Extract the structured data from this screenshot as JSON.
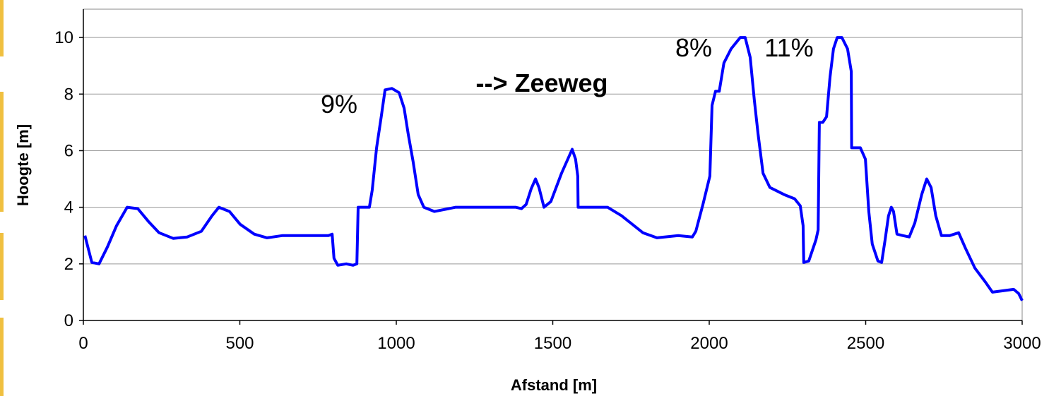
{
  "chart_data": {
    "type": "line",
    "xlabel": "Afstand [m]",
    "ylabel": "Hoogte [m]",
    "annotations": [
      "9%",
      "--> Zeeweg",
      "8%",
      "11%"
    ],
    "color": "#0000ff",
    "grid": true,
    "xlim": [
      0,
      3000
    ],
    "xticks": [
      0,
      500,
      1000,
      1500,
      2000,
      2500,
      3000
    ],
    "ylim": [
      0,
      11
    ],
    "yticks": [
      0,
      2,
      4,
      6,
      8,
      10
    ],
    "x": [
      5,
      27,
      50,
      77,
      106,
      140,
      174,
      208,
      242,
      287,
      332,
      377,
      411,
      433,
      467,
      501,
      546,
      587,
      637,
      783,
      795,
      801,
      813,
      840,
      862,
      874,
      878,
      896,
      914,
      923,
      937,
      952,
      964,
      986,
      1009,
      1025,
      1038,
      1054,
      1070,
      1088,
      1122,
      1190,
      1381,
      1400,
      1415,
      1431,
      1445,
      1456,
      1472,
      1494,
      1528,
      1562,
      1573,
      1580,
      1581,
      1596,
      1641,
      1675,
      1720,
      1788,
      1833,
      1901,
      1946,
      1957,
      1980,
      2002,
      2009,
      2020,
      2032,
      2047,
      2070,
      2099,
      2115,
      2131,
      2144,
      2156,
      2172,
      2194,
      2239,
      2273,
      2291,
      2300,
      2302,
      2318,
      2341,
      2348,
      2352,
      2363,
      2375,
      2386,
      2397,
      2409,
      2424,
      2442,
      2454,
      2455,
      2483,
      2499,
      2510,
      2521,
      2539,
      2551,
      2562,
      2573,
      2582,
      2589,
      2600,
      2618,
      2639,
      2657,
      2679,
      2695,
      2709,
      2724,
      2742,
      2769,
      2797,
      2819,
      2849,
      2883,
      2905,
      2939,
      2973,
      2989,
      3000
    ],
    "values": [
      3.0,
      2.05,
      2.0,
      2.6,
      3.35,
      4.0,
      3.95,
      3.5,
      3.1,
      2.9,
      2.95,
      3.15,
      3.7,
      4.0,
      3.85,
      3.4,
      3.05,
      2.92,
      3.0,
      3.0,
      3.05,
      2.2,
      1.95,
      2.0,
      1.95,
      2.0,
      4.0,
      4.0,
      4.0,
      4.6,
      6.1,
      7.2,
      8.15,
      8.2,
      8.05,
      7.5,
      6.6,
      5.6,
      4.45,
      4.0,
      3.85,
      4.0,
      4.0,
      3.95,
      4.1,
      4.65,
      5.0,
      4.7,
      4.0,
      4.2,
      5.2,
      6.05,
      5.7,
      5.1,
      4.0,
      4.0,
      4.0,
      4.0,
      3.7,
      3.1,
      2.92,
      3.0,
      2.95,
      3.15,
      4.1,
      5.1,
      7.6,
      8.1,
      8.1,
      9.1,
      9.6,
      10.0,
      10.0,
      9.3,
      7.8,
      6.6,
      5.2,
      4.7,
      4.45,
      4.3,
      4.05,
      3.35,
      2.05,
      2.1,
      2.85,
      3.2,
      7.0,
      7.0,
      7.2,
      8.6,
      9.6,
      10.0,
      10.0,
      9.6,
      8.8,
      6.1,
      6.1,
      5.7,
      3.85,
      2.7,
      2.1,
      2.05,
      2.85,
      3.7,
      4.0,
      3.85,
      3.05,
      3.0,
      2.95,
      3.45,
      4.45,
      5.0,
      4.7,
      3.7,
      3.0,
      3.0,
      3.1,
      2.55,
      1.85,
      1.35,
      1.0,
      1.05,
      1.1,
      0.95,
      0.7
    ]
  }
}
